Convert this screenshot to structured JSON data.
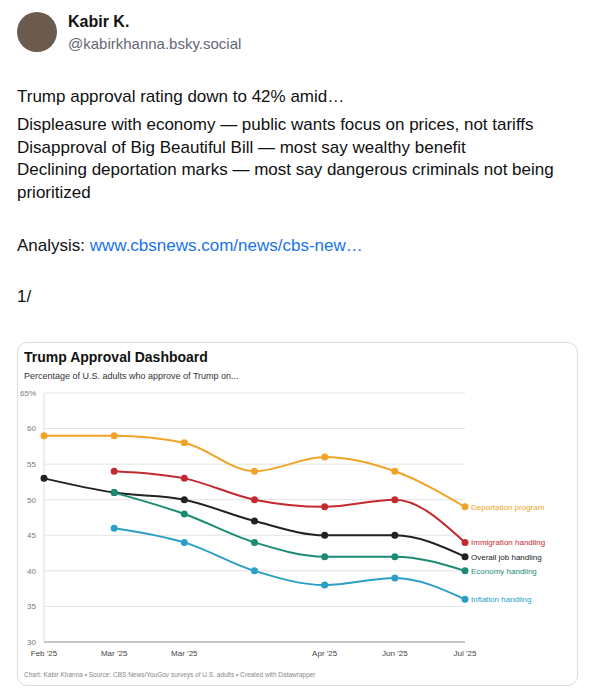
{
  "post": {
    "name": "Kabir K.",
    "handle": "@kabirkhanna.bsky.social",
    "paragraphs": [
      [
        "Trump approval rating down to 42% amid…"
      ],
      [
        "Displeasure with economy — public wants focus on prices, not tariffs",
        "Disapproval of Big Beautiful Bill — most say wealthy benefit",
        "Declining deportation marks — most say dangerous criminals not being prioritized"
      ]
    ],
    "link_prefix": "Analysis: ",
    "link": "www.cbsnews.com/news/cbs-new…",
    "thread": "1/"
  },
  "chart_data": {
    "type": "line",
    "title": "Trump Approval Dashboard",
    "subtitle": "Percentage of U.S. adults who approve of Trump on...",
    "footer": "Chart: Kabir Khanna • Source: CBS News/YouGov surveys of U.S. adults • Created with Datawrapper",
    "categories": [
      "Feb '25",
      "Mar '25",
      "Mar '25",
      null,
      "Apr '25",
      "Jun '25",
      "Jul '25"
    ],
    "series": [
      {
        "name": "Deportation program",
        "color": "#f0a326",
        "values": [
          59,
          59,
          58,
          54,
          56,
          54,
          49
        ]
      },
      {
        "name": "Immigration handling",
        "color": "#c42a30",
        "values": [
          null,
          54,
          53,
          50,
          49,
          50,
          44
        ]
      },
      {
        "name": "Overall job handling",
        "color": "#222222",
        "values": [
          53,
          51,
          50,
          47,
          45,
          45,
          42
        ]
      },
      {
        "name": "Economy handling",
        "color": "#1b8c73",
        "values": [
          null,
          51,
          48,
          44,
          42,
          42,
          40
        ]
      },
      {
        "name": "Inflation handling",
        "color": "#2b9fc6",
        "values": [
          null,
          46,
          44,
          40,
          38,
          39,
          36
        ]
      }
    ],
    "ylim": [
      30,
      65
    ],
    "yticks": [
      30,
      35,
      40,
      45,
      50,
      55,
      60,
      {
        "value": 65,
        "label": "65%"
      }
    ],
    "grid": true,
    "marker": "circle",
    "line_style": "solid"
  }
}
